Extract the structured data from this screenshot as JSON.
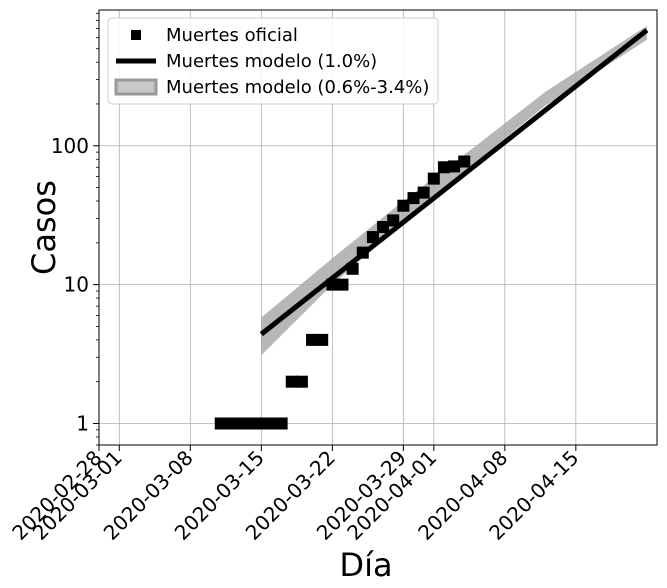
{
  "chart_data": {
    "type": "scatter",
    "title": "",
    "xlabel": "Día",
    "ylabel": "Casos",
    "yscale": "log",
    "ylim": [
      0.7,
      950
    ],
    "xlim": [
      "2020-02-28",
      "2020-04-23"
    ],
    "grid": true,
    "legend_position": "top-left",
    "x_ticks": [
      "2020-02-28",
      "2020-03-01",
      "2020-03-08",
      "2020-03-15",
      "2020-03-22",
      "2020-03-29",
      "2020-04-01",
      "2020-04-08",
      "2020-04-15"
    ],
    "y_ticks": [
      {
        "value": 1,
        "label": "1"
      },
      {
        "value": 10,
        "label": "10"
      },
      {
        "value": 100,
        "label": "100"
      }
    ],
    "series": [
      {
        "name": "Muertes oficial",
        "kind": "markers",
        "color": "#000000",
        "points": [
          {
            "x": "2020-03-11",
            "y": 1
          },
          {
            "x": "2020-03-12",
            "y": 1
          },
          {
            "x": "2020-03-13",
            "y": 1
          },
          {
            "x": "2020-03-14",
            "y": 1
          },
          {
            "x": "2020-03-15",
            "y": 1
          },
          {
            "x": "2020-03-16",
            "y": 1
          },
          {
            "x": "2020-03-17",
            "y": 1
          },
          {
            "x": "2020-03-18",
            "y": 2
          },
          {
            "x": "2020-03-19",
            "y": 2
          },
          {
            "x": "2020-03-20",
            "y": 4
          },
          {
            "x": "2020-03-21",
            "y": 4
          },
          {
            "x": "2020-03-22",
            "y": 10
          },
          {
            "x": "2020-03-23",
            "y": 10
          },
          {
            "x": "2020-03-24",
            "y": 13
          },
          {
            "x": "2020-03-25",
            "y": 17
          },
          {
            "x": "2020-03-26",
            "y": 22
          },
          {
            "x": "2020-03-27",
            "y": 26
          },
          {
            "x": "2020-03-28",
            "y": 29
          },
          {
            "x": "2020-03-29",
            "y": 37
          },
          {
            "x": "2020-03-30",
            "y": 42
          },
          {
            "x": "2020-03-31",
            "y": 46
          },
          {
            "x": "2020-04-01",
            "y": 58
          },
          {
            "x": "2020-04-02",
            "y": 70
          },
          {
            "x": "2020-04-03",
            "y": 71
          },
          {
            "x": "2020-04-04",
            "y": 77
          }
        ]
      },
      {
        "name": "Muertes modelo (1.0%)",
        "kind": "line",
        "color": "#000000",
        "x": [
          "2020-03-15",
          "2020-04-22"
        ],
        "y": [
          4.4,
          680
        ]
      },
      {
        "name": "Muertes modelo (0.6%-3.4%)",
        "kind": "band",
        "color": "#aaaaaa",
        "x": [
          "2020-03-15",
          "2020-03-22",
          "2020-03-29",
          "2020-04-05",
          "2020-04-12",
          "2020-04-22"
        ],
        "lower": [
          3.1,
          10.0,
          28,
          75,
          195,
          580
        ],
        "upper": [
          5.8,
          15.5,
          40,
          98,
          245,
          730
        ]
      }
    ]
  }
}
